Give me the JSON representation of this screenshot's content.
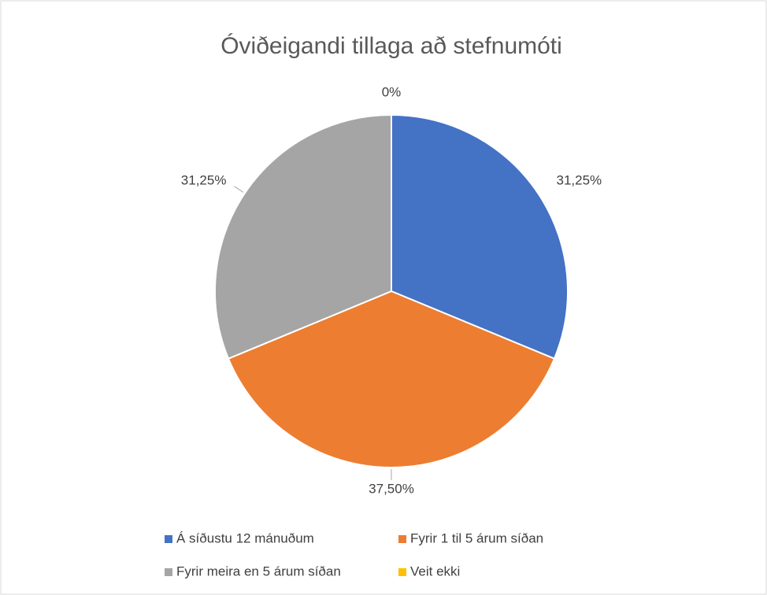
{
  "chart_data": {
    "type": "pie",
    "title": "Óviðeigandi tillaga að stefnumóti",
    "categories": [
      "Á síðustu 12 mánuðum",
      "Fyrir 1 til 5 árum síðan",
      "Fyrir meira en 5 árum síðan",
      "Veit ekki"
    ],
    "values": [
      31.25,
      37.5,
      31.25,
      0
    ],
    "value_labels": [
      "31,25%",
      "37,50%",
      "31,25%",
      "0%"
    ],
    "colors": [
      "#4472c4",
      "#ed7d31",
      "#a5a5a5",
      "#ffc000"
    ],
    "legend": "bottom"
  }
}
